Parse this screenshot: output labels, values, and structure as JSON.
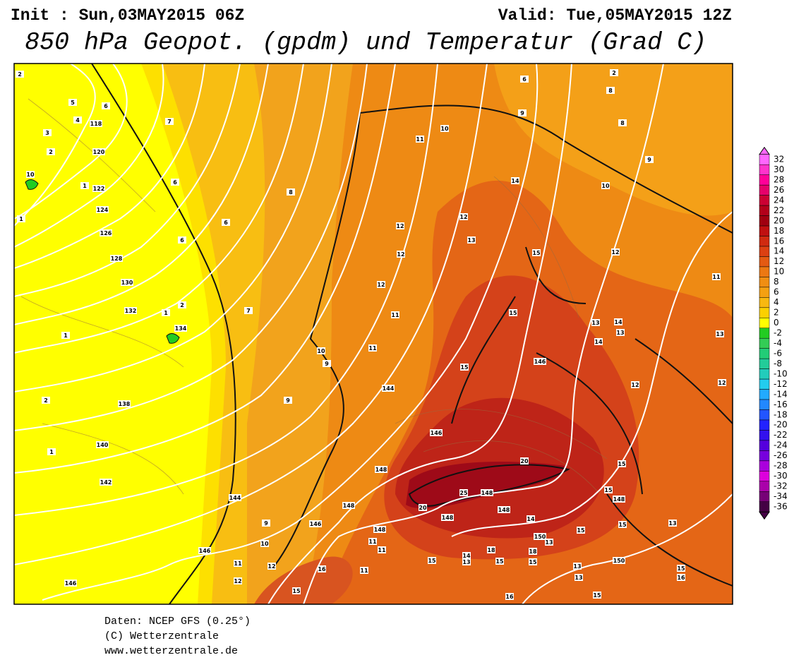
{
  "header": {
    "init": "Init : Sun,03MAY2015 06Z",
    "valid": "Valid: Tue,05MAY2015 12Z",
    "title": "850 hPa Geopot. (gpdm) und Temperatur (Grad C)"
  },
  "colorbar": [
    {
      "value": 32,
      "color": "#ff66ff"
    },
    {
      "value": 30,
      "color": "#ff33cc"
    },
    {
      "value": 28,
      "color": "#ff0099"
    },
    {
      "value": 26,
      "color": "#e6006b"
    },
    {
      "value": 24,
      "color": "#cc0033"
    },
    {
      "value": 22,
      "color": "#b3001a"
    },
    {
      "value": 20,
      "color": "#a00010"
    },
    {
      "value": 18,
      "color": "#c01010"
    },
    {
      "value": 16,
      "color": "#d02a10"
    },
    {
      "value": 14,
      "color": "#dc4012"
    },
    {
      "value": 12,
      "color": "#e45a12"
    },
    {
      "value": 10,
      "color": "#ec7812"
    },
    {
      "value": 8,
      "color": "#f08e12"
    },
    {
      "value": 6,
      "color": "#f4a012"
    },
    {
      "value": 4,
      "color": "#f8b810"
    },
    {
      "value": 2,
      "color": "#fbd000"
    },
    {
      "value": 0,
      "color": "#ffff00"
    },
    {
      "value": -2,
      "color": "#22cc22"
    },
    {
      "value": -4,
      "color": "#33cc55"
    },
    {
      "value": -6,
      "color": "#22cc77"
    },
    {
      "value": -8,
      "color": "#22cc99"
    },
    {
      "value": -10,
      "color": "#22ccbb"
    },
    {
      "value": -12,
      "color": "#22ccee"
    },
    {
      "value": -14,
      "color": "#22aaff"
    },
    {
      "value": -16,
      "color": "#2288ff"
    },
    {
      "value": -18,
      "color": "#2255ff"
    },
    {
      "value": -20,
      "color": "#2222ff"
    },
    {
      "value": -22,
      "color": "#3311ee"
    },
    {
      "value": -24,
      "color": "#5500dd"
    },
    {
      "value": -26,
      "color": "#7700dd"
    },
    {
      "value": -28,
      "color": "#aa00dd"
    },
    {
      "value": -30,
      "color": "#dd00dd"
    },
    {
      "value": -32,
      "color": "#aa00aa"
    },
    {
      "value": -34,
      "color": "#770077"
    },
    {
      "value": -36,
      "color": "#440044"
    }
  ],
  "map": {
    "geopotential_labels": [
      118,
      120,
      122,
      124,
      126,
      128,
      130,
      132,
      134,
      138,
      140,
      142,
      144,
      144,
      146,
      146,
      146,
      146,
      146,
      148,
      148,
      148,
      148,
      148,
      148,
      148,
      150,
      150
    ],
    "temperature_labels": [
      2,
      5,
      6,
      4,
      3,
      2,
      7,
      10,
      1,
      6,
      1,
      6,
      6,
      8,
      7,
      1,
      2,
      1,
      2,
      1,
      9,
      9,
      10,
      11,
      11,
      12,
      12,
      12,
      12,
      13,
      11,
      10,
      9,
      6,
      2,
      8,
      8,
      9,
      10,
      14,
      15,
      12,
      11,
      15,
      13,
      14,
      13,
      14,
      13,
      15,
      12,
      12,
      20,
      15,
      15,
      25,
      20,
      14,
      15,
      13,
      15,
      13,
      10,
      9,
      11,
      12,
      12,
      11,
      11,
      11,
      15,
      14,
      13,
      15,
      18,
      18,
      15,
      13,
      13,
      15,
      16,
      15,
      16,
      16,
      15
    ]
  },
  "footer": {
    "line1": "Daten: NCEP GFS (0.25°)",
    "line2": "(C) Wetterzentrale",
    "line3": "www.wetterzentrale.de"
  }
}
